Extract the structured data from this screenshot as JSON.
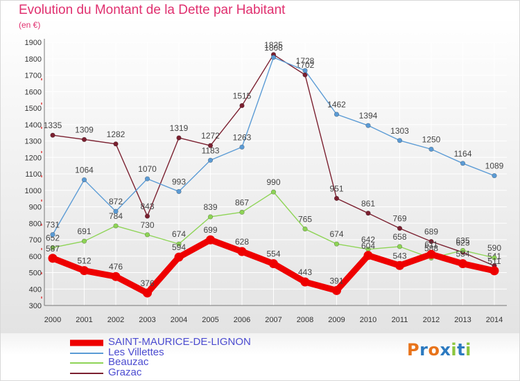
{
  "title": "Evolution du Montant de la Dette par Habitant",
  "unit_label": "(en €)",
  "chart_data": {
    "type": "line",
    "x": [
      "2000",
      "2001",
      "2002",
      "2003",
      "2004",
      "2005",
      "2006",
      "2007",
      "2008",
      "2009",
      "2010",
      "2011",
      "2012",
      "2013",
      "2014"
    ],
    "yticks": [
      300,
      400,
      500,
      600,
      700,
      800,
      900,
      1000,
      1100,
      1200,
      1300,
      1400,
      1500,
      1600,
      1700,
      1800,
      1900
    ],
    "ylim": [
      300,
      1900
    ],
    "grid": true,
    "legend": "bottom-left",
    "series": [
      {
        "name": "Grazac",
        "color": "#7b2030",
        "width": "thin",
        "values": [
          1335,
          1309,
          1282,
          843,
          1319,
          1272,
          1515,
          1825,
          1702,
          951,
          861,
          769,
          689,
          623,
          541
        ]
      },
      {
        "name": "Beauzac",
        "color": "#8ed456",
        "width": "thin",
        "values": [
          652,
          691,
          784,
          730,
          674,
          839,
          867,
          990,
          765,
          674,
          642,
          658,
          588,
          635,
          590
        ]
      },
      {
        "name": "Les Villettes",
        "color": "#5b9bd5",
        "width": "thin",
        "values": [
          731,
          1064,
          872,
          1070,
          993,
          1183,
          1263,
          1808,
          1728,
          1462,
          1394,
          1303,
          1250,
          1164,
          1089
        ]
      },
      {
        "name": "SAINT-MAURICE-DE-LIGNON",
        "color": "#ee0000",
        "width": "thick",
        "values": [
          587,
          512,
          476,
          376,
          594,
          699,
          628,
          554,
          443,
          391,
          604,
          543,
          611,
          554,
          511
        ]
      }
    ]
  },
  "legend_items": [
    {
      "label": "SAINT-MAURICE-DE-LIGNON",
      "color": "#ee0000",
      "style": "thick"
    },
    {
      "label": "Les Villettes",
      "color": "#5b9bd5",
      "style": "thin"
    },
    {
      "label": "Beauzac",
      "color": "#8ed456",
      "style": "thin"
    },
    {
      "label": "Grazac",
      "color": "#7b2030",
      "style": "thin"
    }
  ],
  "logo": {
    "text": "Proxiti",
    "colors": [
      "#e8731a",
      "#2c7ac0",
      "#e8731a",
      "#2c7ac0",
      "#8cc63f",
      "#2c7ac0",
      "#8cc63f"
    ]
  }
}
